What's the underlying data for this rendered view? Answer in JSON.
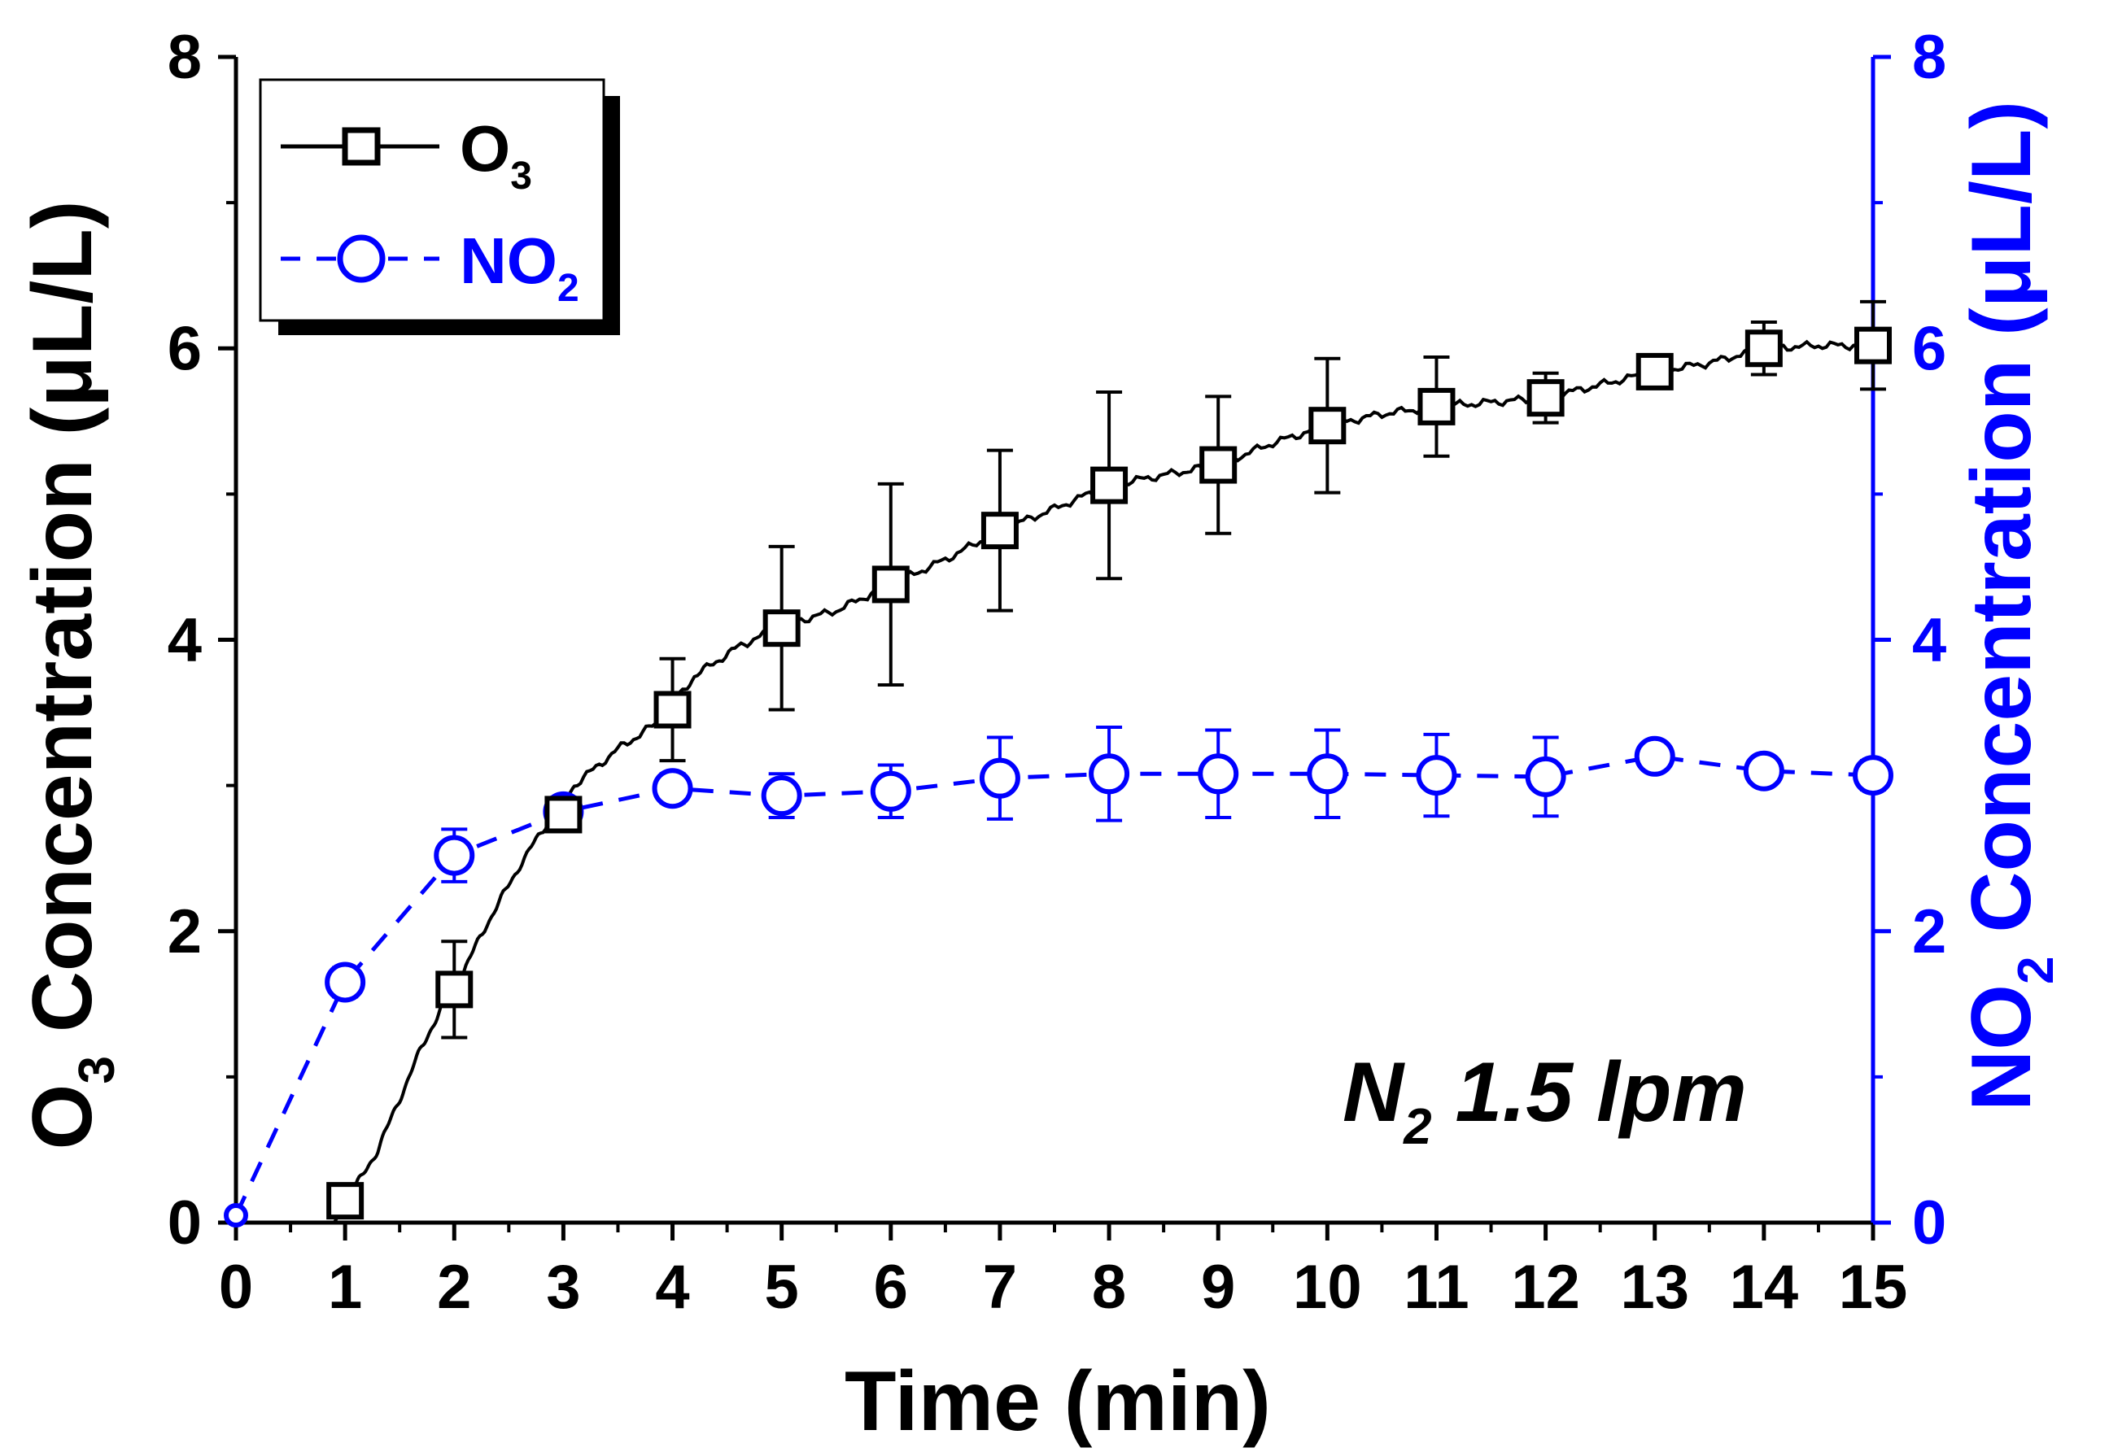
{
  "colors": {
    "o3": "#000000",
    "no2": "#0000ff",
    "axis_left": "#000000",
    "axis_right": "#0000ff"
  },
  "chart_data": {
    "type": "line",
    "title": "",
    "xlabel": "Time (min)",
    "ylabel_left": {
      "main": "O",
      "sub": "3",
      "rest": " Concentration (μL/L)"
    },
    "ylabel_right": {
      "main": "NO",
      "sub": "2",
      "rest": " Concentration (μL/L)"
    },
    "xlim": [
      0,
      15
    ],
    "ylim_left": [
      0,
      8
    ],
    "ylim_right": [
      0,
      8
    ],
    "x_ticks": [
      "0",
      "1",
      "2",
      "3",
      "4",
      "5",
      "6",
      "7",
      "8",
      "9",
      "10",
      "11",
      "12",
      "13",
      "14",
      "15"
    ],
    "y_ticks_left": [
      "0",
      "2",
      "4",
      "6",
      "8"
    ],
    "y_ticks_right": [
      "0",
      "2",
      "4",
      "6",
      "8"
    ],
    "legend_position": "top-left",
    "annotation": {
      "main": "N",
      "sub": "2",
      "rest": " 1.5 lpm"
    },
    "series": [
      {
        "name": "O3",
        "label_main": "O",
        "label_sub": "3",
        "marker": "square",
        "line": "solid",
        "axis": "left",
        "x": [
          1,
          2,
          3,
          4,
          5,
          6,
          7,
          8,
          9,
          10,
          11,
          12,
          13,
          14,
          15
        ],
        "y": [
          0.15,
          1.6,
          2.8,
          3.52,
          4.08,
          4.38,
          4.75,
          5.06,
          5.2,
          5.47,
          5.6,
          5.66,
          5.84,
          6.0,
          6.02
        ],
        "err": [
          0.05,
          0.33,
          0.1,
          0.35,
          0.56,
          0.69,
          0.55,
          0.64,
          0.47,
          0.46,
          0.34,
          0.17,
          0.05,
          0.18,
          0.3
        ],
        "curve_x": [
          0,
          0.9,
          1.1,
          1.3,
          1.5,
          1.7,
          1.9,
          2.0,
          2.3,
          2.6,
          2.9,
          3.1,
          3.5,
          3.9,
          4.2,
          4.6,
          5.0,
          5.5,
          6.0,
          6.5,
          7.0,
          7.5,
          8.0,
          8.5,
          9.0,
          9.5,
          10.0,
          10.5,
          11.0,
          11.5,
          12.0,
          12.5,
          13.0,
          13.5,
          14.0,
          14.5,
          15.0
        ],
        "curve_y": [
          0,
          0,
          0.25,
          0.5,
          0.85,
          1.2,
          1.5,
          1.6,
          2.05,
          2.45,
          2.8,
          3.0,
          3.25,
          3.45,
          3.75,
          3.95,
          4.1,
          4.2,
          4.38,
          4.55,
          4.75,
          4.9,
          5.06,
          5.13,
          5.2,
          5.35,
          5.47,
          5.55,
          5.6,
          5.63,
          5.66,
          5.75,
          5.84,
          5.9,
          6.0,
          6.02,
          6.02
        ]
      },
      {
        "name": "NO2",
        "label_main": "NO",
        "label_sub": "2",
        "marker": "circle",
        "line": "dashed",
        "axis": "right",
        "x": [
          0,
          1,
          2,
          3,
          4,
          5,
          6,
          7,
          8,
          9,
          10,
          11,
          12,
          13,
          14,
          15
        ],
        "y": [
          0.05,
          1.65,
          2.52,
          2.82,
          2.98,
          2.93,
          2.96,
          3.05,
          3.08,
          3.08,
          3.08,
          3.07,
          3.06,
          3.2,
          3.1,
          3.07
        ],
        "err": [
          0,
          0.1,
          0.18,
          0.1,
          0.1,
          0.15,
          0.18,
          0.28,
          0.32,
          0.3,
          0.3,
          0.28,
          0.27,
          0.05,
          0.08,
          0.1
        ]
      }
    ]
  }
}
